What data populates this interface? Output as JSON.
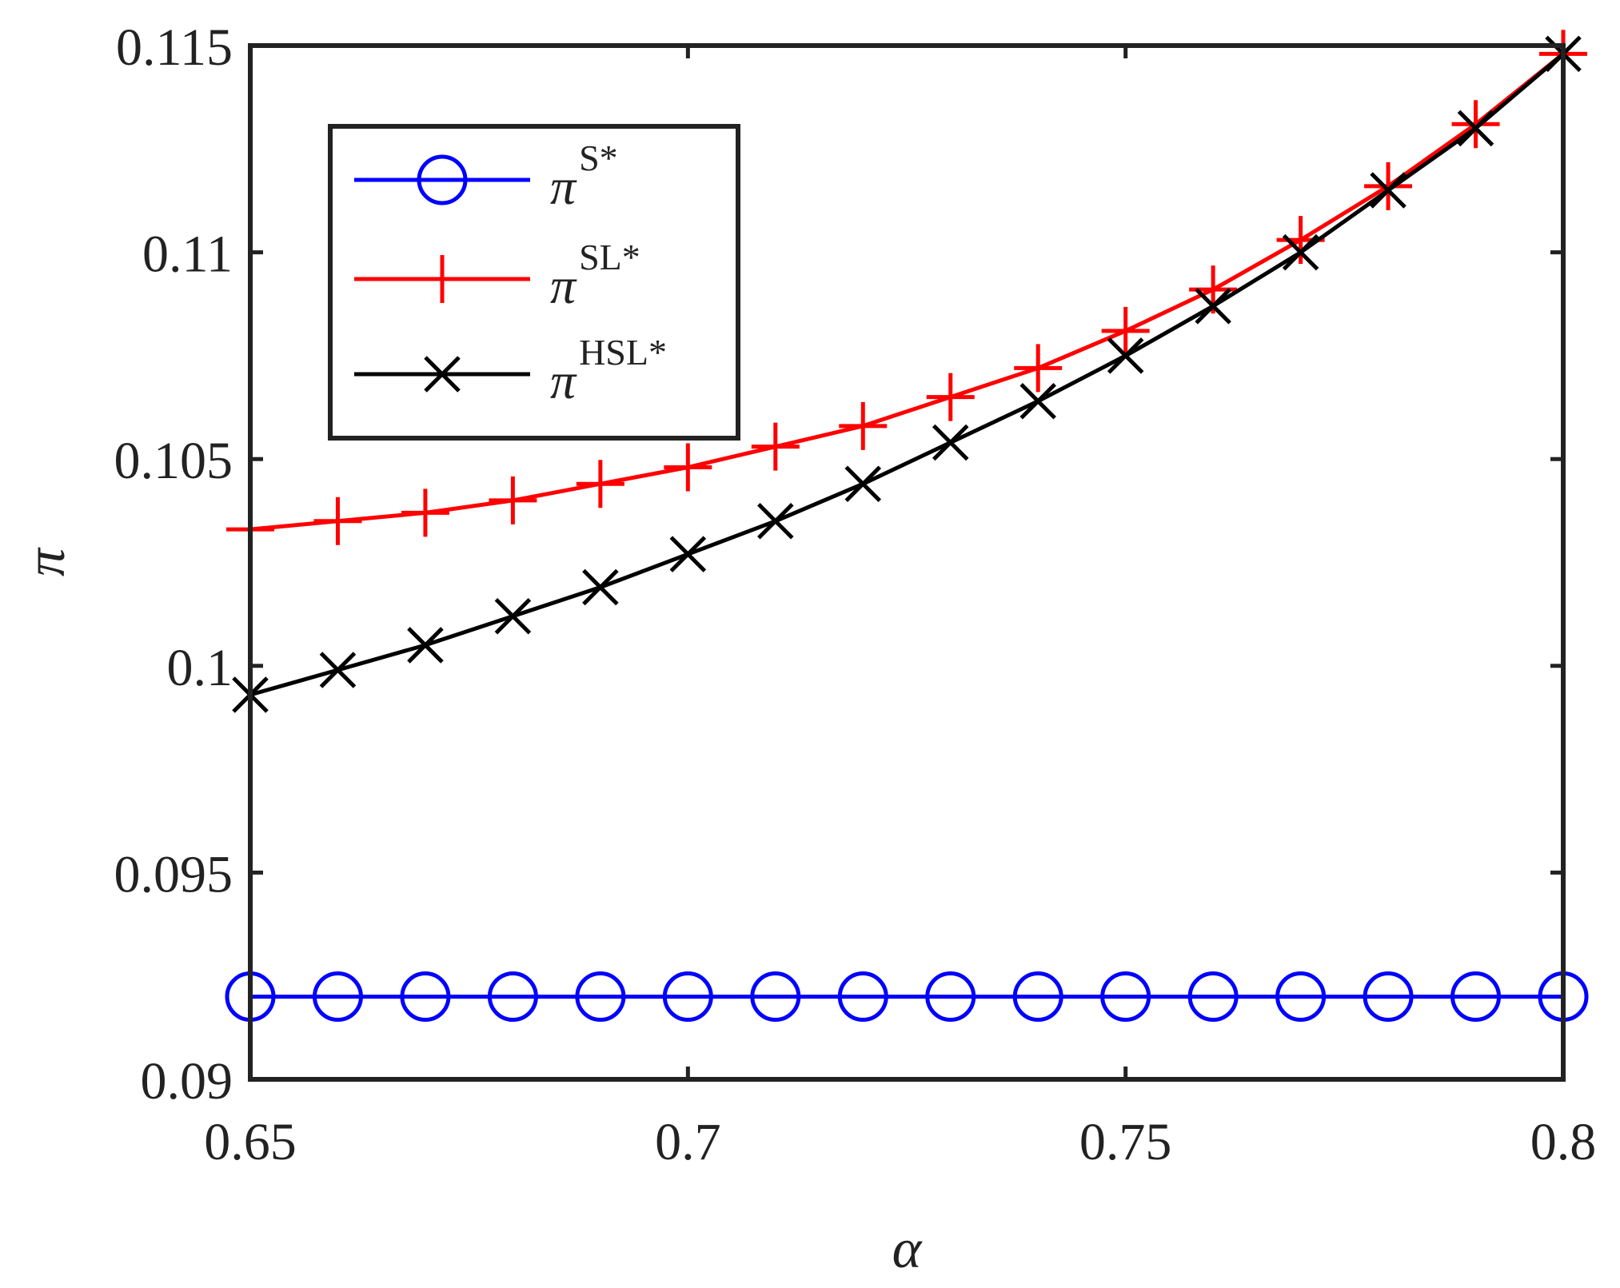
{
  "chart_data": {
    "type": "line",
    "title": "",
    "xlabel": "α",
    "ylabel": "π",
    "xlim": [
      0.65,
      0.8
    ],
    "ylim": [
      0.09,
      0.115
    ],
    "xticks": [
      0.65,
      0.7,
      0.75,
      0.8
    ],
    "xtick_labels": [
      "0.65",
      "0.7",
      "0.75",
      "0.8"
    ],
    "yticks": [
      0.09,
      0.095,
      0.1,
      0.105,
      0.11,
      0.115
    ],
    "ytick_labels": [
      "0.09",
      "0.095",
      "0.1",
      "0.105",
      "0.11",
      "0.115"
    ],
    "legend_position": "top-left",
    "grid": false,
    "x": [
      0.65,
      0.66,
      0.67,
      0.68,
      0.69,
      0.7,
      0.71,
      0.72,
      0.73,
      0.74,
      0.75,
      0.76,
      0.77,
      0.78,
      0.79,
      0.8
    ],
    "series": [
      {
        "name": "π^S*",
        "symbol": "π",
        "sup": "S*",
        "color": "#0000ff",
        "marker": "circle",
        "values": [
          0.092,
          0.092,
          0.092,
          0.092,
          0.092,
          0.092,
          0.092,
          0.092,
          0.092,
          0.092,
          0.092,
          0.092,
          0.092,
          0.092,
          0.092,
          0.092
        ]
      },
      {
        "name": "π^SL*",
        "symbol": "π",
        "sup": "SL*",
        "color": "#ff0000",
        "marker": "plus",
        "values": [
          0.1033,
          0.1035,
          0.1037,
          0.104,
          0.1044,
          0.1048,
          0.1053,
          0.1058,
          0.1065,
          0.1072,
          0.1081,
          0.1091,
          0.1103,
          0.1116,
          0.1131,
          0.1148
        ]
      },
      {
        "name": "π^HSL*",
        "symbol": "π",
        "sup": "HSL*",
        "color": "#000000",
        "marker": "x",
        "values": [
          0.0993,
          0.0999,
          0.1005,
          0.1012,
          0.1019,
          0.1027,
          0.1035,
          0.1044,
          0.1054,
          0.1064,
          0.1075,
          0.1087,
          0.11,
          0.1115,
          0.113,
          0.1148
        ]
      }
    ]
  }
}
